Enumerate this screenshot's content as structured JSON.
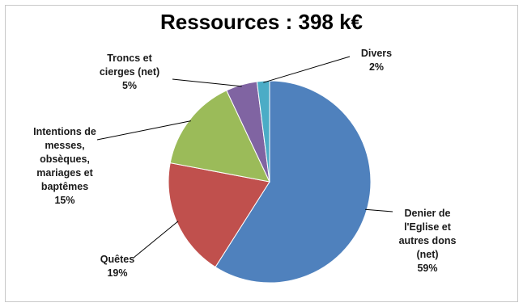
{
  "chart_data": {
    "type": "pie",
    "title": "Ressources : 398 k€",
    "slices": [
      {
        "label_lines": [
          "Denier de",
          "l'Eglise et",
          "autres dons",
          "(net)"
        ],
        "pct_label": "59%",
        "value": 59,
        "color": "#4f81bd"
      },
      {
        "label_lines": [
          "Quêtes"
        ],
        "pct_label": "19%",
        "value": 19,
        "color": "#c0504d"
      },
      {
        "label_lines": [
          "Intentions de",
          "messes,",
          "obsèques,",
          "mariages et",
          "baptêmes"
        ],
        "pct_label": "15%",
        "value": 15,
        "color": "#9bbb59"
      },
      {
        "label_lines": [
          "Troncs et",
          "cierges (net)"
        ],
        "pct_label": "5%",
        "value": 5,
        "color": "#8064a2"
      },
      {
        "label_lines": [
          "Divers"
        ],
        "pct_label": "2%",
        "value": 2,
        "color": "#4bacc6"
      }
    ]
  }
}
